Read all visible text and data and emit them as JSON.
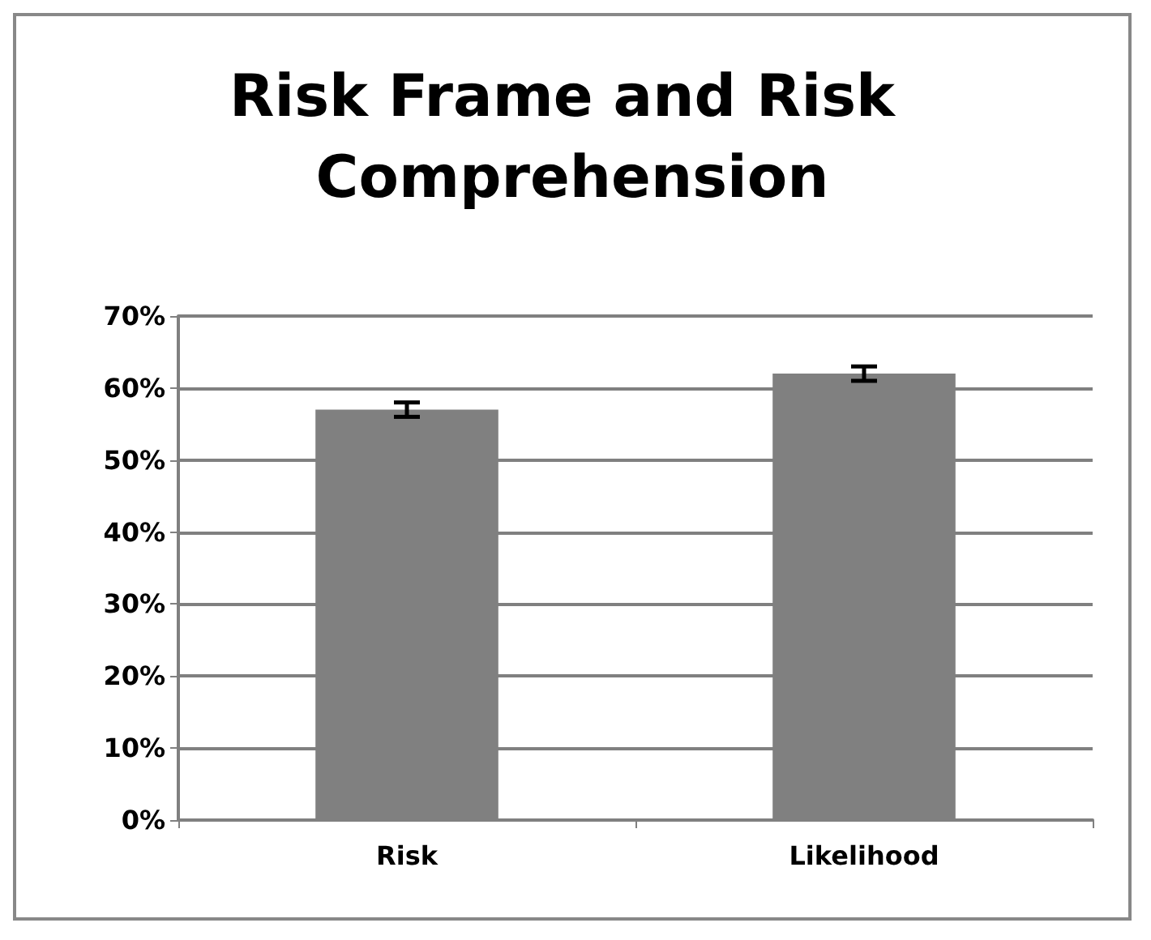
{
  "chart_data": {
    "type": "bar",
    "title": "Risk Frame and Risk Comprehension",
    "categories": [
      "Risk",
      "Likelihood"
    ],
    "values": [
      57,
      62
    ],
    "errors": [
      1,
      1
    ],
    "color": "#808080",
    "ylim": [
      0,
      70
    ],
    "yticks": [
      {
        "value": 0,
        "label": "0%"
      },
      {
        "value": 10,
        "label": "10%"
      },
      {
        "value": 20,
        "label": "20%"
      },
      {
        "value": 30,
        "label": "30%"
      },
      {
        "value": 40,
        "label": "40%"
      },
      {
        "value": 50,
        "label": "50%"
      },
      {
        "value": 60,
        "label": "60%"
      },
      {
        "value": 70,
        "label": "70%"
      }
    ],
    "grid": true
  }
}
